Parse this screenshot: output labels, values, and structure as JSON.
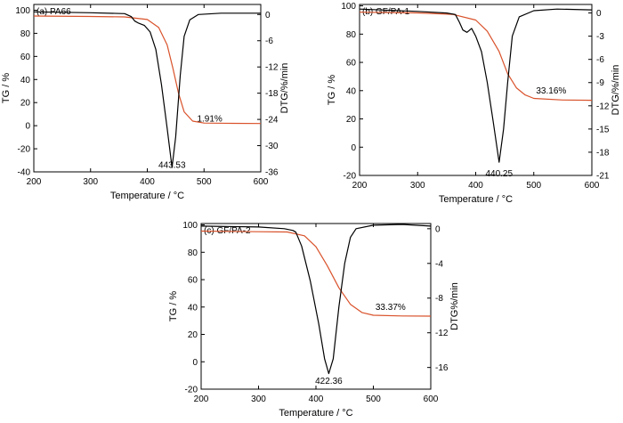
{
  "chart_data": [
    {
      "type": "line",
      "panel_label": "(a) PA66",
      "xlabel": "Temperature / °C",
      "ylabel_left": "TG / %",
      "ylabel_right": "DTG/%/min",
      "xlim": [
        200,
        600
      ],
      "ylim_left": [
        -40,
        105
      ],
      "ylim_right": [
        -36,
        2.3
      ],
      "x_ticks": [
        "200",
        "300",
        "400",
        "500",
        "600"
      ],
      "left_ticks": [
        "-40",
        "-20",
        "0",
        "20",
        "40",
        "60",
        "80",
        "100"
      ],
      "right_ticks": [
        "-36",
        "-30",
        "-24",
        "-18",
        "-12",
        "-6",
        "0"
      ],
      "annotations": [
        {
          "text": "443.53",
          "x": 443.53,
          "y": -36.5
        },
        {
          "text": "1.91%",
          "x": 510,
          "y": 3.5
        }
      ],
      "series": [
        {
          "role": "TG",
          "axis": "left",
          "color": "#d9522b",
          "points": [
            [
              200,
              95
            ],
            [
              300,
              94.6
            ],
            [
              360,
              94.2
            ],
            [
              400,
              92
            ],
            [
              420,
              85
            ],
            [
              435,
              70
            ],
            [
              445,
              50
            ],
            [
              455,
              28
            ],
            [
              465,
              12
            ],
            [
              480,
              4
            ],
            [
              500,
              2.3
            ],
            [
              550,
              2
            ],
            [
              600,
              1.91
            ]
          ]
        },
        {
          "role": "DTG",
          "axis": "right",
          "color": "#000000",
          "points": [
            [
              200,
              0.6
            ],
            [
              300,
              0.4
            ],
            [
              360,
              0.2
            ],
            [
              372,
              -0.5
            ],
            [
              378,
              -1.5
            ],
            [
              385,
              -2
            ],
            [
              395,
              -2.5
            ],
            [
              405,
              -4
            ],
            [
              415,
              -8
            ],
            [
              425,
              -16
            ],
            [
              435,
              -26
            ],
            [
              443.53,
              -35
            ],
            [
              450,
              -28
            ],
            [
              458,
              -14
            ],
            [
              465,
              -5
            ],
            [
              475,
              -1.2
            ],
            [
              490,
              0
            ],
            [
              530,
              0.3
            ],
            [
              600,
              0.3
            ]
          ]
        }
      ]
    },
    {
      "type": "line",
      "panel_label": "(b) GF/PA-1",
      "xlabel": "Temperature / °C",
      "ylabel_left": "TG / %",
      "ylabel_right": "DTG/%/min",
      "xlim": [
        200,
        600
      ],
      "ylim_left": [
        -20,
        101
      ],
      "ylim_right": [
        -21,
        1.1
      ],
      "x_ticks": [
        "200",
        "300",
        "400",
        "500",
        "600"
      ],
      "left_ticks": [
        "-20",
        "0",
        "20",
        "40",
        "60",
        "80",
        "100"
      ],
      "right_ticks": [
        "-21",
        "-18",
        "-15",
        "-12",
        "-9",
        "-6",
        "-3",
        "0"
      ],
      "annotations": [
        {
          "text": "440.25",
          "x": 440.25,
          "y": -20.5
        },
        {
          "text": "33.16%",
          "x": 530,
          "y": 38
        }
      ],
      "series": [
        {
          "role": "TG",
          "axis": "left",
          "color": "#d9522b",
          "points": [
            [
              200,
              95.5
            ],
            [
              300,
              95
            ],
            [
              360,
              94
            ],
            [
              400,
              90
            ],
            [
              420,
              82
            ],
            [
              440,
              68
            ],
            [
              455,
              52
            ],
            [
              470,
              42
            ],
            [
              485,
              37
            ],
            [
              500,
              34.5
            ],
            [
              550,
              33.4
            ],
            [
              600,
              33.16
            ]
          ]
        },
        {
          "role": "DTG",
          "axis": "right",
          "color": "#000000",
          "points": [
            [
              200,
              0.5
            ],
            [
              300,
              0.2
            ],
            [
              350,
              0
            ],
            [
              365,
              -0.2
            ],
            [
              372,
              -1.2
            ],
            [
              378,
              -2.2
            ],
            [
              385,
              -2.5
            ],
            [
              393,
              -2
            ],
            [
              400,
              -3
            ],
            [
              410,
              -5
            ],
            [
              420,
              -9
            ],
            [
              430,
              -14
            ],
            [
              440.25,
              -19.3
            ],
            [
              448,
              -15
            ],
            [
              455,
              -9
            ],
            [
              463,
              -3
            ],
            [
              475,
              -0.5
            ],
            [
              500,
              0.3
            ],
            [
              540,
              0.5
            ],
            [
              600,
              0.4
            ]
          ]
        }
      ]
    },
    {
      "type": "line",
      "panel_label": "(c) GF/PA-2",
      "xlabel": "Temperature / °C",
      "ylabel_left": "TG / %",
      "ylabel_right": "DTG%/min",
      "xlim": [
        200,
        600
      ],
      "ylim_left": [
        -20,
        101
      ],
      "ylim_right": [
        -18.5,
        0.6
      ],
      "x_ticks": [
        "200",
        "300",
        "400",
        "500",
        "600"
      ],
      "left_ticks": [
        "-20",
        "0",
        "20",
        "40",
        "60",
        "80",
        "100"
      ],
      "right_ticks": [
        "-16",
        "-12",
        "-8",
        "-4",
        "0"
      ],
      "annotations": [
        {
          "text": "422.36",
          "x": 422.36,
          "y": -16
        },
        {
          "text": "33.37%",
          "x": 530,
          "y": 38
        }
      ],
      "series": [
        {
          "role": "TG",
          "axis": "left",
          "color": "#d9522b",
          "points": [
            [
              200,
              95.5
            ],
            [
              300,
              95
            ],
            [
              350,
              94.8
            ],
            [
              380,
              92
            ],
            [
              400,
              84
            ],
            [
              420,
              70
            ],
            [
              440,
              54
            ],
            [
              460,
              42
            ],
            [
              480,
              36
            ],
            [
              500,
              34
            ],
            [
              550,
              33.5
            ],
            [
              600,
              33.37
            ]
          ]
        },
        {
          "role": "DTG",
          "axis": "right",
          "color": "#000000",
          "points": [
            [
              200,
              0.3
            ],
            [
              300,
              0.2
            ],
            [
              345,
              0
            ],
            [
              360,
              -0.2
            ],
            [
              365,
              -0.4
            ],
            [
              375,
              -2
            ],
            [
              390,
              -6
            ],
            [
              405,
              -11
            ],
            [
              415,
              -15
            ],
            [
              422.36,
              -16.7
            ],
            [
              430,
              -15
            ],
            [
              440,
              -9
            ],
            [
              450,
              -4
            ],
            [
              460,
              -1
            ],
            [
              470,
              0
            ],
            [
              500,
              0.4
            ],
            [
              550,
              0.5
            ],
            [
              600,
              0.3
            ]
          ]
        }
      ]
    }
  ]
}
